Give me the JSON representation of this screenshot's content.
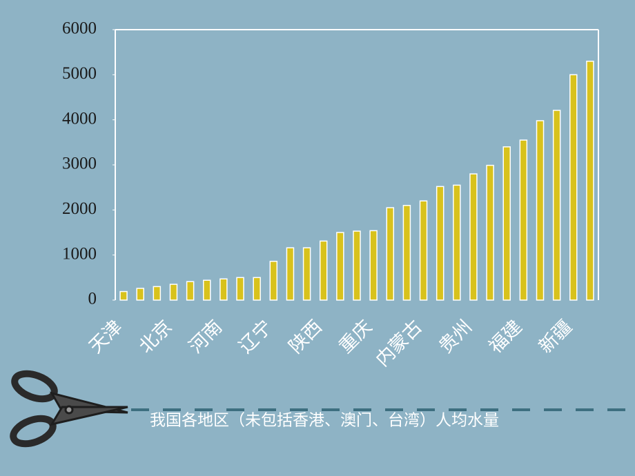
{
  "chart_data": {
    "type": "bar",
    "title": "我国各地区（未包括香港、澳门、台湾）人均水量",
    "categories": [
      "天津",
      null,
      null,
      "北京",
      null,
      null,
      "河南",
      null,
      null,
      "辽宁",
      null,
      null,
      "陕西",
      null,
      null,
      "重庆",
      null,
      null,
      "内蒙古",
      null,
      null,
      "贵州",
      null,
      null,
      "福建",
      null,
      null,
      "新疆",
      null
    ],
    "values": [
      190,
      260,
      300,
      350,
      410,
      440,
      470,
      500,
      500,
      860,
      1160,
      1160,
      1310,
      1500,
      1530,
      1540,
      2050,
      2100,
      2200,
      2520,
      2550,
      2800,
      2990,
      3400,
      3550,
      3980,
      4210,
      5000,
      5300
    ],
    "color": "#d8c21c",
    "ylim": [
      0,
      6000
    ],
    "yticks": [
      0,
      1000,
      2000,
      3000,
      4000,
      5000,
      6000
    ],
    "grid": false
  }
}
